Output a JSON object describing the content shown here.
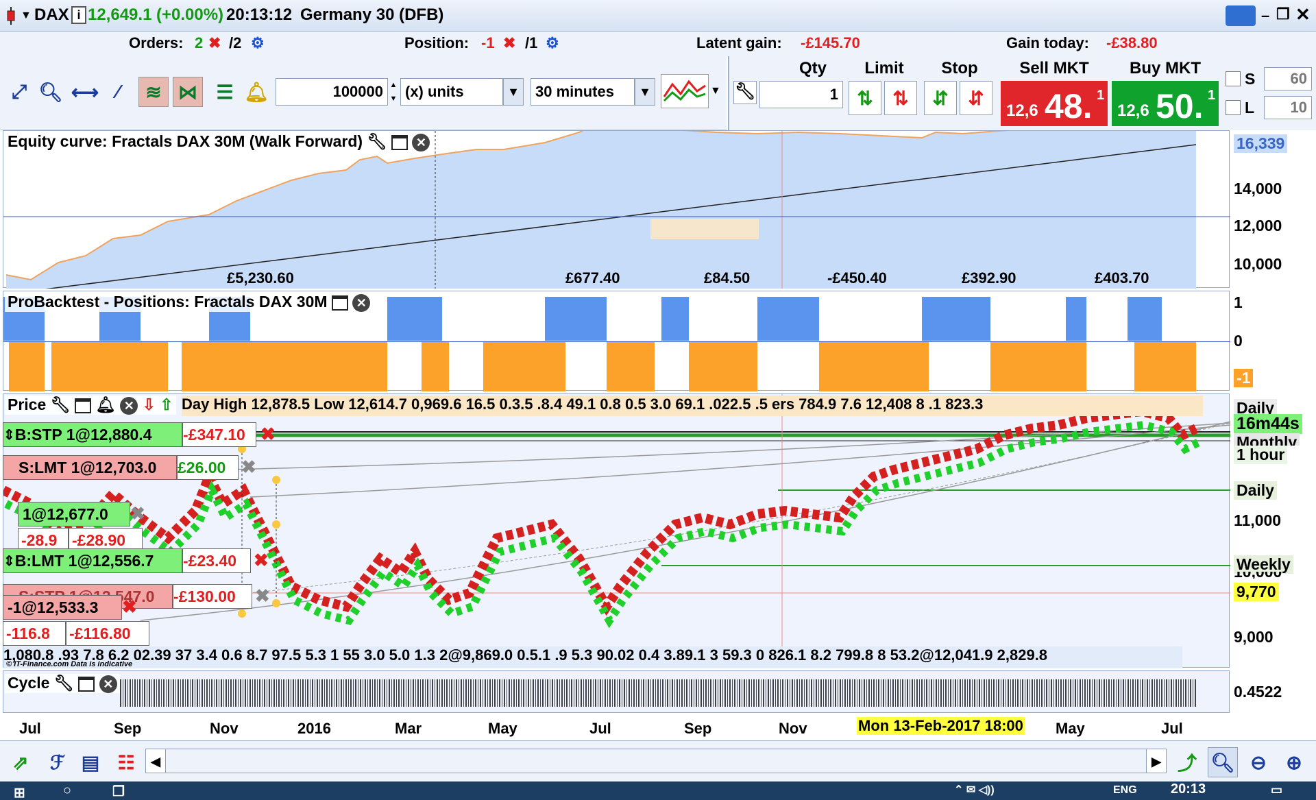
{
  "title": {
    "symbol": "DAX",
    "price": "12,649.1",
    "change": "(+0.00%)",
    "time": "20:13:12",
    "name": "Germany 30 (DFB)"
  },
  "info": {
    "orders_label": "Orders:",
    "orders_a": "2",
    "orders_b": "/2",
    "position_label": "Position:",
    "position_a": "-1",
    "position_b": "/1",
    "latent_label": "Latent gain:",
    "latent_value": "-£145.70",
    "gain_today_label": "Gain today:",
    "gain_today_value": "-£38.80"
  },
  "toolbar": {
    "amount": "100000",
    "units": "(x) units",
    "timeframe": "30 minutes"
  },
  "order_panel": {
    "qty_label": "Qty",
    "qty_value": "1",
    "limit_label": "Limit",
    "stop_label": "Stop",
    "sell_label": "Sell MKT",
    "buy_label": "Buy MKT",
    "sell_prefix": "12,6",
    "sell_big": "48.",
    "sell_sup": "1",
    "buy_prefix": "12,6",
    "buy_big": "50.",
    "buy_sup": "1",
    "s_label": "S",
    "s_value": "60",
    "l_label": "L",
    "l_value": "10"
  },
  "equity": {
    "title": "Equity curve: Fractals DAX 30M (Walk Forward)",
    "last_value": "16,339",
    "axis": [
      "14,000",
      "12,000",
      "10,000"
    ],
    "segments": [
      "£5,230.60",
      "£677.40",
      "£84.50",
      "-£450.40",
      "£392.90",
      "£403.70"
    ]
  },
  "positions": {
    "title": "ProBacktest - Positions: Fractals DAX 30M",
    "axis": [
      "1",
      "0",
      "-1"
    ]
  },
  "price": {
    "title": "Price",
    "overlay_text": "Day High 12,878.5 Low 12,614.7 0,969.6 16.5 0.3.5 .8.4 49.1 0.8 0.5 3.0 69.1 .022.5 .5 ers 784.9 7.6 12,408 8 .1 823.3",
    "axis": [
      "11,000",
      "9,000"
    ],
    "axis_partial": "10,000",
    "tags": {
      "daily_top": "Daily",
      "countdown": "16m44s",
      "monthly": "Monthly",
      "hour": "1 hour",
      "daily": "Daily",
      "weekly": "Weekly",
      "level": "9,770"
    },
    "bottom_text": "1,080.8 .93 7.8 6.2 02.39 37 3.4 0.6 8.7 97.5 5.3 1 55 3.0 5.0 1.3 2@9,869.0 0.5.1 .9 5.3 90.02 0.4 3.89.1 3 59.3 0 826.1 8.2 799.8 8 53.2@12,041.9 2,829.8",
    "copyright": "© IT-Finance.com Data is indicative"
  },
  "orders": [
    {
      "text": "B:STP 1@12,880.4",
      "pnl": "-£347.10"
    },
    {
      "text": "S:LMT 1@12,703.0",
      "pnl": "£26.00"
    },
    {
      "text": "1@12,677.0",
      "pnl": ""
    },
    {
      "text": "-28.9",
      "pnl": "-£28.90"
    },
    {
      "text": "B:LMT 1@12,556.7",
      "pnl": "-£23.40"
    },
    {
      "text": "S:STP 1@12,547.0",
      "pnl": "-£130.00"
    },
    {
      "text": "-1@12,533.3",
      "pnl": ""
    },
    {
      "text": "-116.8",
      "pnl": "-£116.80"
    }
  ],
  "cycle": {
    "title": "Cycle",
    "value": "0.4522"
  },
  "xaxis": {
    "labels": [
      "Jul",
      "Sep",
      "Nov",
      "2016",
      "Mar",
      "May",
      "Jul",
      "Sep",
      "Nov",
      "May",
      "Jul"
    ],
    "cursor_label": "Mon 13-Feb-2017 18:00"
  },
  "taskbar": {
    "clock": "20:13",
    "lang": "ENG"
  },
  "colors": {
    "buy": "#0fa32e",
    "sell": "#e0262a",
    "equity_fill": "#c6dcf8",
    "long_bar": "#5b94ee",
    "short_bar": "#fca22a"
  }
}
